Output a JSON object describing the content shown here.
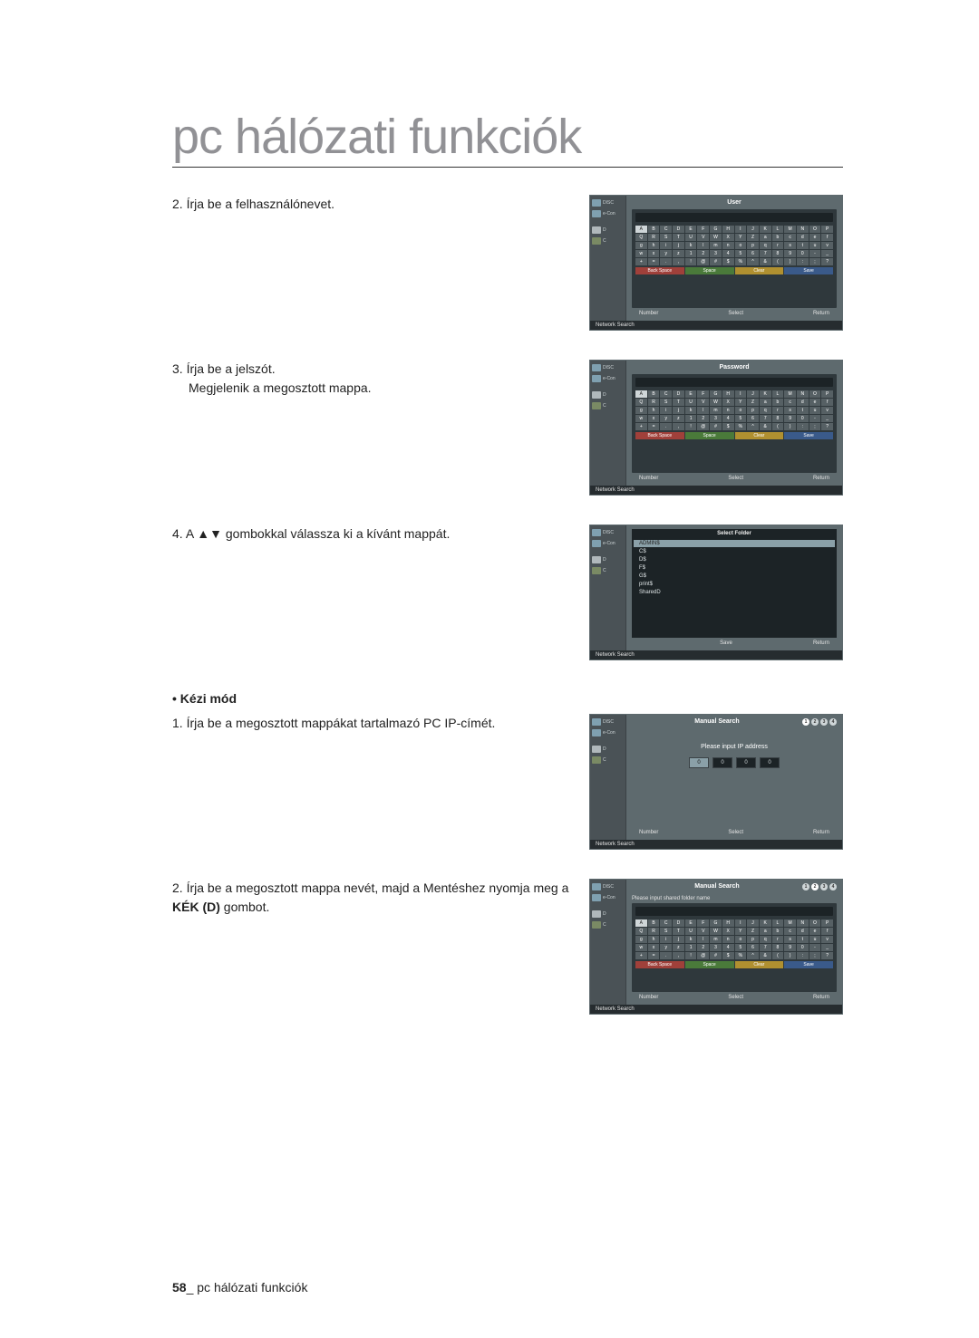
{
  "page": {
    "title": "pc hálózati funkciók",
    "footer_page": "58",
    "footer_label": "pc hálózati funkciók"
  },
  "steps": {
    "s2": {
      "num": "2.",
      "text": "Írja be a felhasználónevet."
    },
    "s3": {
      "num": "3.",
      "text": "Írja be a jelszót.",
      "text2": "Megjelenik a megosztott mappa."
    },
    "s4": {
      "num": "4.",
      "prefix": "A ",
      "arrows": "▲▼",
      "suffix": " gombokkal válassza ki a kívánt mappát."
    },
    "manual_heading": "• Kézi mód",
    "m1": {
      "num": "1.",
      "text": "Írja be a megosztott mappákat tartalmazó PC IP-címét."
    },
    "m2": {
      "num": "2.",
      "text_a": "Írja be a megosztott mappa nevét, majd a Mentéshez nyomja meg a ",
      "bold": "KÉK (D)",
      "text_b": " gombot."
    }
  },
  "shots": {
    "common": {
      "left_items": [
        "DISC",
        "e-Con"
      ],
      "left_items2": [
        "D",
        "C"
      ],
      "footer_number": "Number",
      "footer_select": "Select",
      "footer_return": "Return",
      "footer_save": "Save",
      "network_search": "Network Search",
      "kb_actions": {
        "a": "Back Space",
        "b": "Space",
        "c": "Clear",
        "d": "Save"
      },
      "kb_rows": [
        [
          "A",
          "B",
          "C",
          "D",
          "E",
          "F",
          "G",
          "H",
          "I",
          "J",
          "K",
          "L",
          "M",
          "N",
          "O",
          "P"
        ],
        [
          "Q",
          "R",
          "S",
          "T",
          "U",
          "V",
          "W",
          "X",
          "Y",
          "Z",
          "a",
          "b",
          "c",
          "d",
          "e",
          "f"
        ],
        [
          "g",
          "h",
          "i",
          "j",
          "k",
          "l",
          "m",
          "n",
          "o",
          "p",
          "q",
          "r",
          "s",
          "t",
          "u",
          "v"
        ],
        [
          "w",
          "x",
          "y",
          "z",
          "1",
          "2",
          "3",
          "4",
          "5",
          "6",
          "7",
          "8",
          "9",
          "0",
          "-",
          "_"
        ],
        [
          "+",
          "=",
          ".",
          ",",
          "!",
          "@",
          "#",
          "$",
          "%",
          "^",
          "&",
          "(",
          ")",
          ":",
          ";",
          "?"
        ]
      ]
    },
    "user": {
      "header": "User"
    },
    "password": {
      "header": "Password"
    },
    "select_folder": {
      "header": "Select Folder",
      "items": [
        "ADMIN$",
        "C$",
        "D$",
        "F$",
        "G$",
        "print$",
        "SharedD"
      ]
    },
    "manual_ip": {
      "header": "Manual Search",
      "prompt": "Please input IP address",
      "ip": [
        "0",
        "0",
        "0",
        "0"
      ],
      "active_step": 1
    },
    "manual_name": {
      "header": "Manual Search",
      "prompt": "Please input shared folder name",
      "active_step": 2
    }
  }
}
